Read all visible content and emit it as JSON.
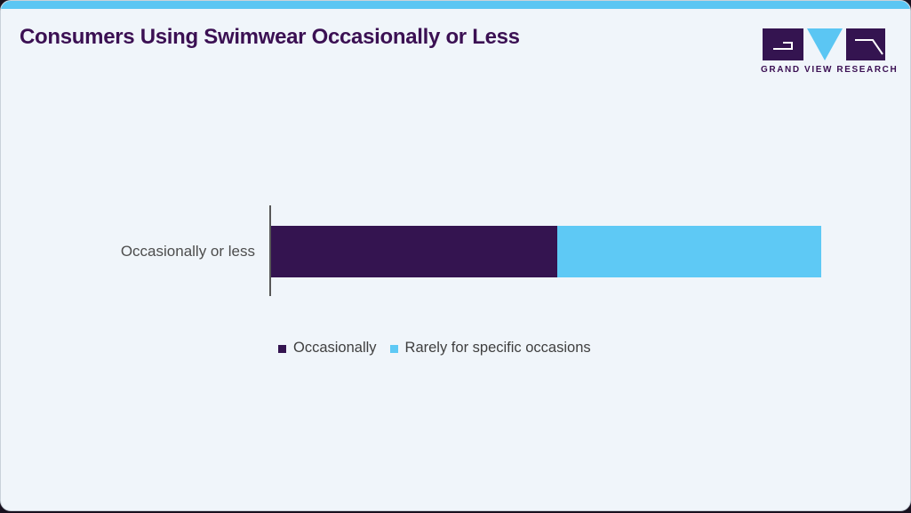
{
  "header": {
    "title": "Consumers Using Swimwear Occasionally or Less",
    "logo": {
      "text": "GRAND VIEW RESEARCH"
    }
  },
  "chart_data": {
    "type": "bar",
    "orientation": "horizontal",
    "stacked": true,
    "title": "Consumers Using Swimwear Occasionally or Less",
    "categories": [
      "Occasionally or less"
    ],
    "series": [
      {
        "name": "Occasionally",
        "values": [
          52
        ],
        "color": "#341450"
      },
      {
        "name": "Rarely for specific occasions",
        "values": [
          48
        ],
        "color": "#5ec9f5"
      }
    ],
    "value_labels_shown": false,
    "x_axis_ticks_shown": false,
    "grid": false,
    "legend_position": "bottom",
    "note": "values are percent shares estimated from segment widths"
  },
  "colors": {
    "card_background": "#f0f5fa",
    "accent_strip": "#5bc6f3",
    "title_text": "#3b1053",
    "bar_purple": "#341450",
    "bar_blue": "#5ec9f5",
    "axis_line": "#585858",
    "category_text": "#4d4d4d",
    "legend_text": "#3f3f3f",
    "outer_background": "#18111f"
  }
}
